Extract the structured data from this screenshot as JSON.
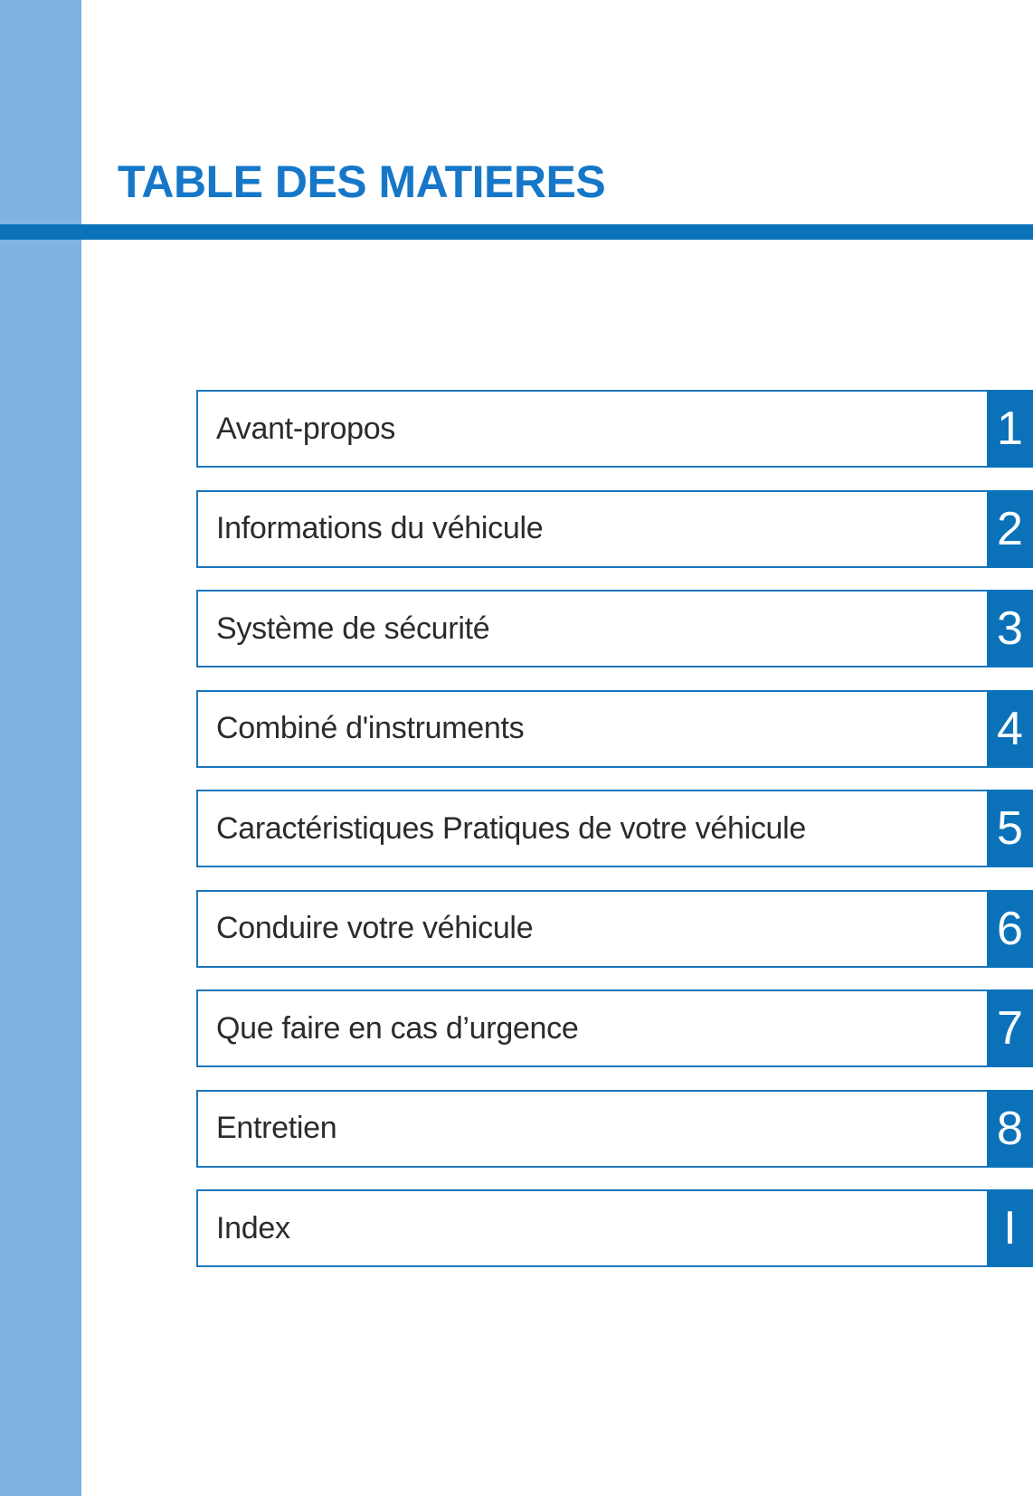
{
  "page": {
    "title": "TABLE DES MATIERES"
  },
  "colors": {
    "sidebar_band": "#7fb3e2",
    "accent_bar": "#0b72ba",
    "box_border": "#1b76bd",
    "tab_background": "#0b72ba",
    "tab_text": "#ffffff",
    "title_text": "#1677c8",
    "item_text": "#2b2b2b"
  },
  "toc": {
    "items": [
      {
        "label": "Avant-propos",
        "tab": "1"
      },
      {
        "label": "Informations du véhicule",
        "tab": "2"
      },
      {
        "label": "Système de sécurité",
        "tab": "3"
      },
      {
        "label": "Combiné d'instruments",
        "tab": "4"
      },
      {
        "label": "Caractéristiques Pratiques de votre véhicule",
        "tab": "5"
      },
      {
        "label": "Conduire votre véhicule",
        "tab": "6"
      },
      {
        "label": "Que faire en cas d’urgence",
        "tab": "7"
      },
      {
        "label": "Entretien",
        "tab": "8"
      },
      {
        "label": "Index",
        "tab": "I"
      }
    ]
  }
}
